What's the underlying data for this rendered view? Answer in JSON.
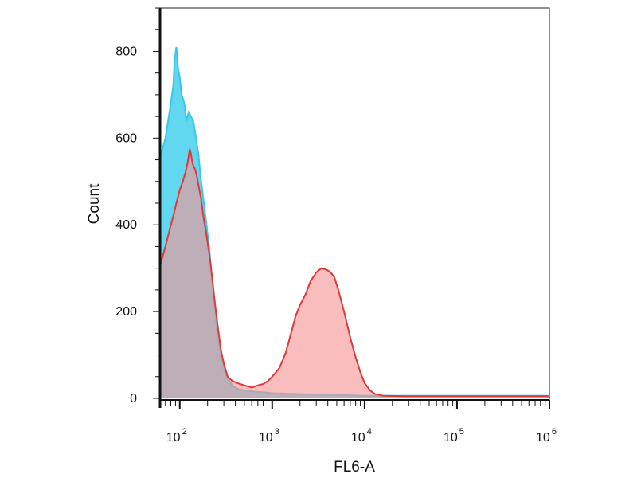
{
  "chart_data": {
    "type": "area",
    "xlabel": "FL6-A",
    "ylabel": "Count",
    "x_scale": "log",
    "xlim": [
      60,
      1000000
    ],
    "ylim": [
      0,
      900
    ],
    "y_ticks": [
      {
        "value": 0,
        "label": "0"
      },
      {
        "value": 200,
        "label": "200"
      },
      {
        "value": 400,
        "label": "400"
      },
      {
        "value": 600,
        "label": "600"
      },
      {
        "value": 800,
        "label": "800"
      }
    ],
    "x_ticks": [
      {
        "value": 100,
        "base": "10",
        "exp": "2"
      },
      {
        "value": 1000,
        "base": "10",
        "exp": "3"
      },
      {
        "value": 10000,
        "base": "10",
        "exp": "4"
      },
      {
        "value": 100000,
        "base": "10",
        "exp": "5"
      },
      {
        "value": 1000000,
        "base": "10",
        "exp": "6"
      }
    ],
    "grid": false,
    "legend": "none",
    "series": [
      {
        "color": "#35c8e8",
        "fill": "#62d7f0",
        "points": [
          [
            62,
            560
          ],
          [
            70,
            600
          ],
          [
            80,
            680
          ],
          [
            85,
            720
          ],
          [
            88,
            780
          ],
          [
            92,
            810
          ],
          [
            96,
            760
          ],
          [
            100,
            740
          ],
          [
            105,
            700
          ],
          [
            112,
            680
          ],
          [
            118,
            640
          ],
          [
            125,
            660
          ],
          [
            132,
            650
          ],
          [
            140,
            640
          ],
          [
            150,
            600
          ],
          [
            160,
            560
          ],
          [
            168,
            510
          ],
          [
            180,
            460
          ],
          [
            195,
            400
          ],
          [
            210,
            340
          ],
          [
            225,
            270
          ],
          [
            240,
            200
          ],
          [
            260,
            140
          ],
          [
            280,
            100
          ],
          [
            300,
            70
          ],
          [
            330,
            45
          ],
          [
            370,
            30
          ],
          [
            420,
            22
          ],
          [
            500,
            18
          ],
          [
            600,
            16
          ],
          [
            800,
            14
          ],
          [
            1000,
            12
          ],
          [
            2000,
            10
          ],
          [
            5000,
            8
          ],
          [
            10000,
            6
          ],
          [
            20000,
            6
          ],
          [
            100000,
            6
          ],
          [
            1000000,
            6
          ]
        ]
      },
      {
        "color": "#de3a3a",
        "fill": "#f59595",
        "points": [
          [
            62,
            310
          ],
          [
            70,
            350
          ],
          [
            78,
            390
          ],
          [
            85,
            420
          ],
          [
            92,
            450
          ],
          [
            100,
            480
          ],
          [
            108,
            500
          ],
          [
            115,
            520
          ],
          [
            122,
            545
          ],
          [
            128,
            575
          ],
          [
            132,
            565
          ],
          [
            138,
            540
          ],
          [
            145,
            530
          ],
          [
            152,
            515
          ],
          [
            160,
            490
          ],
          [
            170,
            460
          ],
          [
            180,
            420
          ],
          [
            195,
            375
          ],
          [
            210,
            330
          ],
          [
            225,
            275
          ],
          [
            240,
            220
          ],
          [
            260,
            160
          ],
          [
            280,
            110
          ],
          [
            300,
            80
          ],
          [
            330,
            50
          ],
          [
            370,
            40
          ],
          [
            420,
            35
          ],
          [
            500,
            30
          ],
          [
            600,
            25
          ],
          [
            700,
            30
          ],
          [
            800,
            33
          ],
          [
            900,
            40
          ],
          [
            1000,
            50
          ],
          [
            1200,
            70
          ],
          [
            1400,
            105
          ],
          [
            1600,
            150
          ],
          [
            1800,
            190
          ],
          [
            2000,
            215
          ],
          [
            2300,
            240
          ],
          [
            2600,
            270
          ],
          [
            3000,
            290
          ],
          [
            3400,
            300
          ],
          [
            3700,
            298
          ],
          [
            4000,
            295
          ],
          [
            4300,
            290
          ],
          [
            4700,
            280
          ],
          [
            5200,
            250
          ],
          [
            6000,
            200
          ],
          [
            7000,
            140
          ],
          [
            8000,
            95
          ],
          [
            9000,
            60
          ],
          [
            10000,
            35
          ],
          [
            11500,
            18
          ],
          [
            13000,
            10
          ],
          [
            16000,
            6
          ],
          [
            30000,
            5
          ],
          [
            100000,
            5
          ],
          [
            1000000,
            5
          ]
        ]
      }
    ]
  }
}
